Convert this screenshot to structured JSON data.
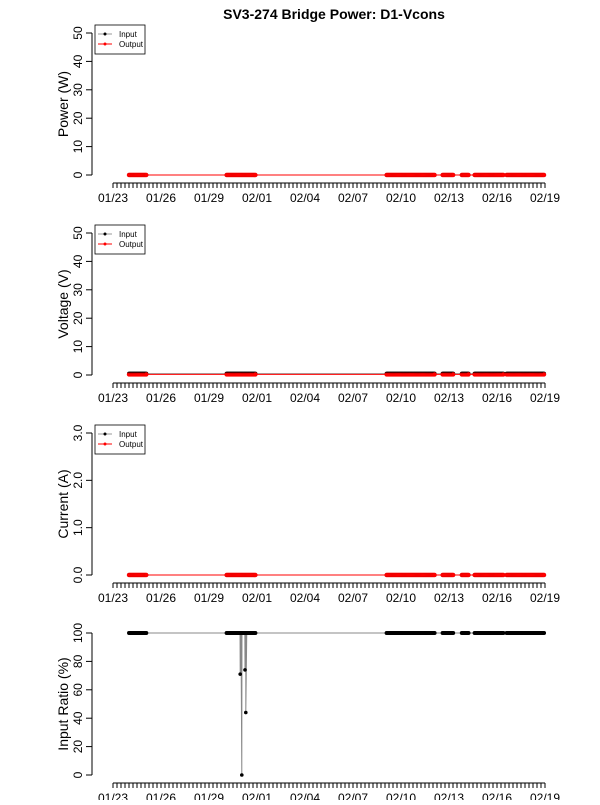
{
  "chart_data": [
    {
      "type": "line",
      "title": "SV3-274 Bridge Power: D1-Vcons",
      "ylabel": "Power (W)",
      "ylim": [
        0,
        50
      ],
      "yticks": [
        "0",
        "10",
        "20",
        "30",
        "40",
        "50"
      ],
      "legend": {
        "placement": "top-left",
        "entries": [
          "Input",
          "Output"
        ]
      },
      "series": [
        {
          "name": "Input",
          "color": "#000000",
          "value": 0
        },
        {
          "name": "Output",
          "color": "#ff0000",
          "value": 0
        }
      ]
    },
    {
      "type": "line",
      "ylabel": "Voltage (V)",
      "ylim": [
        0,
        50
      ],
      "yticks": [
        "0",
        "10",
        "20",
        "30",
        "40",
        "50"
      ],
      "legend": {
        "placement": "top-left",
        "entries": [
          "Input",
          "Output"
        ]
      },
      "series": [
        {
          "name": "Input",
          "color": "#000000",
          "value": 0.5
        },
        {
          "name": "Output",
          "color": "#ff0000",
          "value": 0.2
        }
      ]
    },
    {
      "type": "line",
      "ylabel": "Current (A)",
      "ylim": [
        0,
        3
      ],
      "yticks": [
        "0.0",
        "1.0",
        "2.0",
        "3.0"
      ],
      "legend": {
        "placement": "top-left",
        "entries": [
          "Input",
          "Output"
        ]
      },
      "series": [
        {
          "name": "Input",
          "color": "#000000",
          "value": 0
        },
        {
          "name": "Output",
          "color": "#ff0000",
          "value": 0
        }
      ]
    },
    {
      "type": "line",
      "ylabel": "Input Ratio (%)",
      "ylim": [
        0,
        100
      ],
      "yticks": [
        "0",
        "20",
        "40",
        "60",
        "80",
        "100"
      ],
      "series": [
        {
          "name": "Input Ratio",
          "color": "#000000",
          "value": 100,
          "dips": [
            {
              "day": 7.95,
              "value": 71
            },
            {
              "day": 8.05,
              "value": 0
            },
            {
              "day": 8.25,
              "value": 74
            },
            {
              "day": 8.3,
              "value": 44
            }
          ]
        }
      ]
    }
  ],
  "x_axis": {
    "days_from_0123": [
      0,
      3,
      6,
      9,
      12,
      15,
      18,
      21,
      24,
      27
    ],
    "tick_labels": [
      "01/23",
      "01/26",
      "01/29",
      "02/01",
      "02/04",
      "02/07",
      "02/10",
      "02/13",
      "02/16",
      "02/19"
    ],
    "range_days": [
      0,
      27
    ],
    "minor_ticks_per_day": 4
  },
  "data_segments_days": [
    [
      1.0,
      2.1
    ],
    [
      7.1,
      8.9
    ],
    [
      17.1,
      20.1
    ],
    [
      20.6,
      21.3
    ],
    [
      21.8,
      22.25
    ],
    [
      22.6,
      24.4
    ],
    [
      24.6,
      26.95
    ]
  ]
}
